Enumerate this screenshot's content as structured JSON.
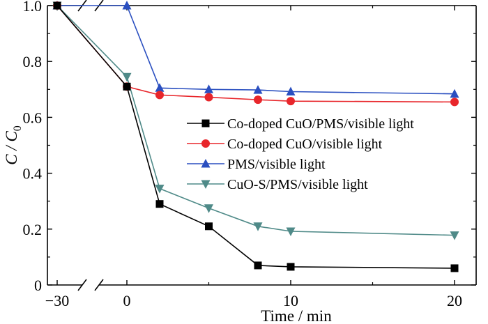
{
  "chart_data": {
    "type": "line",
    "xlabel": "Time / min",
    "ylabel": "C / C0",
    "ylabel_parts": {
      "main": "C / C",
      "sub": "0"
    },
    "xlim": [
      -30,
      20
    ],
    "ylim": [
      0,
      1.0
    ],
    "x_axis_break": {
      "between": [
        -30,
        0
      ],
      "symbol": "//"
    },
    "x_ticks": [
      -30,
      0,
      10,
      20
    ],
    "x_tick_labels": [
      "−30",
      "0",
      "10",
      "20"
    ],
    "y_ticks": [
      0,
      0.2,
      0.4,
      0.6,
      0.8,
      1.0
    ],
    "y_tick_labels": [
      "0",
      "0.2",
      "0.4",
      "0.6",
      "0.8",
      "1.0"
    ],
    "grid": false,
    "legend_position": "center-right",
    "series": [
      {
        "name": "Co-doped CuO/PMS/visible light",
        "color": "#000000",
        "marker": "square",
        "x": [
          -30,
          0,
          2,
          5,
          8,
          10,
          20
        ],
        "y": [
          1.0,
          0.71,
          0.29,
          0.21,
          0.07,
          0.065,
          0.06
        ]
      },
      {
        "name": "Co-doped CuO/visible light",
        "color": "#e8262b",
        "marker": "circle",
        "x": [
          -30,
          0,
          2,
          5,
          8,
          10,
          20
        ],
        "y": [
          1.0,
          0.71,
          0.68,
          0.672,
          0.663,
          0.658,
          0.655
        ]
      },
      {
        "name": "PMS/visible light",
        "color": "#2a4fc0",
        "marker": "triangle-up",
        "x": [
          -30,
          0,
          2,
          5,
          8,
          10,
          20
        ],
        "y": [
          1.0,
          1.0,
          0.705,
          0.7,
          0.698,
          0.692,
          0.684
        ]
      },
      {
        "name": "CuO-S/PMS/visible light",
        "color": "#4f8a88",
        "marker": "triangle-down",
        "x": [
          -30,
          0,
          2,
          5,
          8,
          10,
          20
        ],
        "y": [
          1.0,
          0.745,
          0.345,
          0.275,
          0.21,
          0.192,
          0.178
        ]
      }
    ]
  }
}
